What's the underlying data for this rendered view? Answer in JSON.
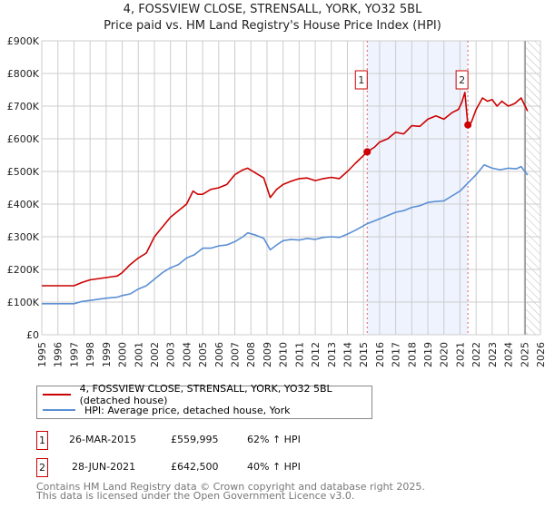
{
  "title": "4, FOSSVIEW CLOSE, STRENSALL, YORK, YO32 5BL",
  "subtitle": "Price paid vs. HM Land Registry's House Price Index (HPI)",
  "chart_data": {
    "type": "line",
    "title": "4, FOSSVIEW CLOSE, STRENSALL, YORK, YO32 5BL",
    "subtitle": "Price paid vs. HM Land Registry's House Price Index (HPI)",
    "xlim": [
      1995,
      2026
    ],
    "ylim": [
      0,
      900000
    ],
    "x_ticks": [
      "1995",
      "1996",
      "1997",
      "1998",
      "1999",
      "2000",
      "2001",
      "2002",
      "2003",
      "2004",
      "2005",
      "2006",
      "2007",
      "2008",
      "2009",
      "2010",
      "2011",
      "2012",
      "2013",
      "2014",
      "2015",
      "2016",
      "2017",
      "2018",
      "2019",
      "2020",
      "2021",
      "2022",
      "2023",
      "2024",
      "2025",
      "2026"
    ],
    "y_ticks": [
      {
        "v": 0,
        "label": "£0"
      },
      {
        "v": 100000,
        "label": "£100K"
      },
      {
        "v": 200000,
        "label": "£200K"
      },
      {
        "v": 300000,
        "label": "£300K"
      },
      {
        "v": 400000,
        "label": "£400K"
      },
      {
        "v": 500000,
        "label": "£500K"
      },
      {
        "v": 600000,
        "label": "£600K"
      },
      {
        "v": 700000,
        "label": "£700K"
      },
      {
        "v": 800000,
        "label": "£800K"
      },
      {
        "v": 900000,
        "label": "£900K"
      }
    ],
    "grid": true,
    "shaded_range": [
      2015.23,
      2021.49
    ],
    "hatched_from": 2025.05,
    "series": [
      {
        "name": "4, FOSSVIEW CLOSE, STRENSALL, YORK, YO32 5BL (detached house)",
        "color": "#cc0000",
        "x": [
          1995,
          1996,
          1997,
          1997.5,
          1998,
          1999,
          1999.7,
          2000,
          2000.5,
          2001,
          2001.5,
          2002,
          2002.5,
          2003,
          2003.5,
          2004,
          2004.4,
          2004.7,
          2005,
          2005.5,
          2006,
          2006.5,
          2007,
          2007.5,
          2007.8,
          2008.3,
          2008.8,
          2009.2,
          2009.6,
          2010,
          2010.5,
          2011,
          2011.5,
          2012,
          2012.5,
          2013,
          2013.5,
          2014,
          2014.5,
          2015.23,
          2015.7,
          2016,
          2016.5,
          2017,
          2017.5,
          2018,
          2018.5,
          2019,
          2019.5,
          2020,
          2020.5,
          2020.9,
          2021.1,
          2021.3,
          2021.4,
          2021.49,
          2021.7,
          2022,
          2022.4,
          2022.7,
          2023,
          2023.3,
          2023.6,
          2024,
          2024.4,
          2024.8,
          2025.2
        ],
        "y": [
          150000,
          150000,
          150000,
          160000,
          168000,
          175000,
          180000,
          190000,
          215000,
          235000,
          250000,
          300000,
          330000,
          360000,
          380000,
          400000,
          440000,
          430000,
          430000,
          445000,
          450000,
          460000,
          490000,
          505000,
          510000,
          495000,
          480000,
          420000,
          445000,
          460000,
          470000,
          478000,
          480000,
          472000,
          478000,
          482000,
          478000,
          500000,
          525000,
          560000,
          575000,
          590000,
          600000,
          620000,
          615000,
          640000,
          638000,
          660000,
          670000,
          660000,
          680000,
          690000,
          710000,
          742000,
          690000,
          642500,
          650000,
          690000,
          725000,
          715000,
          720000,
          700000,
          715000,
          700000,
          708000,
          725000,
          685000
        ]
      },
      {
        "name": "HPI: Average price, detached house, York",
        "color": "#5b8fd4",
        "x": [
          1995,
          1996,
          1997,
          1997.5,
          1998,
          1999,
          1999.7,
          2000,
          2000.5,
          2001,
          2001.5,
          2002,
          2002.5,
          2003,
          2003.5,
          2004,
          2004.5,
          2005,
          2005.5,
          2006,
          2006.5,
          2007,
          2007.5,
          2007.8,
          2008.3,
          2008.8,
          2009.2,
          2009.6,
          2010,
          2010.5,
          2011,
          2011.5,
          2012,
          2012.5,
          2013,
          2013.5,
          2014,
          2014.5,
          2015.23,
          2016,
          2016.5,
          2017,
          2017.5,
          2018,
          2018.5,
          2019,
          2019.5,
          2020,
          2020.5,
          2021,
          2021.5,
          2022,
          2022.5,
          2023,
          2023.5,
          2024,
          2024.5,
          2024.8,
          2025.2
        ],
        "y": [
          95000,
          95000,
          95000,
          102000,
          105000,
          112000,
          115000,
          120000,
          125000,
          140000,
          150000,
          170000,
          190000,
          205000,
          215000,
          235000,
          245000,
          265000,
          265000,
          272000,
          275000,
          285000,
          300000,
          312000,
          305000,
          295000,
          260000,
          275000,
          288000,
          292000,
          290000,
          295000,
          292000,
          298000,
          300000,
          298000,
          308000,
          320000,
          340000,
          355000,
          365000,
          375000,
          380000,
          390000,
          395000,
          405000,
          408000,
          410000,
          425000,
          440000,
          465000,
          490000,
          520000,
          510000,
          505000,
          510000,
          508000,
          515000,
          489000
        ]
      }
    ],
    "annotations": [
      {
        "label": "1",
        "x": 2015.23,
        "y": 559995
      },
      {
        "label": "2",
        "x": 2021.49,
        "y": 642500
      }
    ]
  },
  "legend": [
    {
      "label": "4, FOSSVIEW CLOSE, STRENSALL, YORK, YO32 5BL (detached house)",
      "color": "#cc0000"
    },
    {
      "label": "HPI: Average price, detached house, York",
      "color": "#5b8fd4"
    }
  ],
  "transactions": [
    {
      "num": "1",
      "date": "26-MAR-2015",
      "price": "£559,995",
      "hpi": "62% ↑ HPI"
    },
    {
      "num": "2",
      "date": "28-JUN-2021",
      "price": "£642,500",
      "hpi": "40% ↑ HPI"
    }
  ],
  "footer": [
    "Contains HM Land Registry data © Crown copyright and database right 2025.",
    "This data is licensed under the Open Government Licence v3.0."
  ]
}
